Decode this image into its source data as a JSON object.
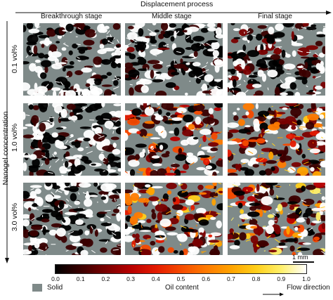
{
  "top_axis": {
    "label": "Displacement process"
  },
  "left_axis": {
    "label": "Nanogel concentration"
  },
  "columns": [
    {
      "label": "Breakthrough stage"
    },
    {
      "label": "Middle stage"
    },
    {
      "label": "Final stage"
    }
  ],
  "rows": [
    {
      "label": "0.1 vol%"
    },
    {
      "label": "1.0 vol%"
    },
    {
      "label": "3.0 vol%"
    }
  ],
  "panels": [
    [
      {
        "oil_level": 0.1
      },
      {
        "oil_level": 0.12
      },
      {
        "oil_level": 0.15
      }
    ],
    [
      {
        "oil_level": 0.1
      },
      {
        "oil_level": 0.45
      },
      {
        "oil_level": 0.55
      }
    ],
    [
      {
        "oil_level": 0.1
      },
      {
        "oil_level": 0.6
      },
      {
        "oil_level": 0.72
      }
    ]
  ],
  "scale_bar": {
    "label": "1 mm"
  },
  "colorbar": {
    "ticks": [
      "0.0",
      "0.1",
      "0.2",
      "0.3",
      "0.4",
      "0.5",
      "0.6",
      "0.7",
      "0.8",
      "0.9",
      "1.0"
    ],
    "title": "Oil content",
    "colors": [
      "#000000",
      "#3a0000",
      "#7a0000",
      "#b80000",
      "#e41a00",
      "#f54a00",
      "#ff7a00",
      "#ffa300",
      "#ffcf1a",
      "#fff06a",
      "#ffffff"
    ]
  },
  "legend": {
    "solid_label": "Solid",
    "solid_color": "#7f8a89",
    "flow_label": "Flow direction"
  }
}
